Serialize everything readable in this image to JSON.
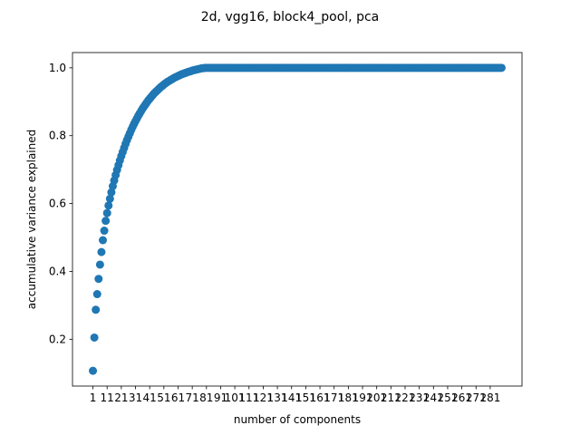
{
  "chart_data": {
    "type": "scatter",
    "title": "2d, vgg16, block4_pool, pca",
    "xlabel": "number of components",
    "ylabel": "accumulative variance explained",
    "color": "#1f77b4",
    "grid": false,
    "xlim": [
      -13.4,
      303.4
    ],
    "ylim": [
      0.062,
      1.045
    ],
    "xticks": [
      1,
      11,
      21,
      31,
      41,
      51,
      61,
      71,
      81,
      91,
      101,
      111,
      121,
      131,
      141,
      151,
      161,
      171,
      181,
      191,
      201,
      211,
      221,
      231,
      241,
      251,
      261,
      271,
      281
    ],
    "yticks": [
      0.2,
      0.4,
      0.6,
      0.8,
      {
        "value": 1,
        "label": "1.0"
      }
    ],
    "x": [
      1,
      2,
      3,
      4,
      5,
      6,
      7,
      8,
      9,
      10,
      11,
      12,
      13,
      14,
      15,
      16,
      17,
      18,
      19,
      20,
      21,
      22,
      23,
      24,
      25,
      26,
      27,
      28,
      29,
      30,
      31,
      32,
      33,
      34,
      35,
      36,
      37,
      38,
      39,
      40,
      41,
      42,
      43,
      44,
      45,
      46,
      47,
      48,
      49,
      50,
      51,
      52,
      53,
      54,
      55,
      56,
      57,
      58,
      59,
      60,
      61,
      62,
      63,
      64,
      65,
      66,
      67,
      68,
      69,
      70,
      71,
      72,
      73,
      74,
      75,
      76,
      77,
      78,
      79,
      80,
      81,
      82,
      83,
      84,
      85,
      86,
      87,
      88,
      89,
      90,
      91,
      92,
      93,
      94,
      95,
      96,
      97,
      98,
      99,
      100,
      101,
      102,
      103,
      104,
      105,
      106,
      107,
      108,
      109,
      110,
      111,
      112,
      113,
      114,
      115,
      116,
      117,
      118,
      119,
      120,
      121,
      122,
      123,
      124,
      125,
      126,
      127,
      128,
      129,
      130,
      131,
      132,
      133,
      134,
      135,
      136,
      137,
      138,
      139,
      140,
      141,
      142,
      143,
      144,
      145,
      146,
      147,
      148,
      149,
      150,
      151,
      152,
      153,
      154,
      155,
      156,
      157,
      158,
      159,
      160,
      161,
      162,
      163,
      164,
      165,
      166,
      167,
      168,
      169,
      170,
      171,
      172,
      173,
      174,
      175,
      176,
      177,
      178,
      179,
      180,
      181,
      182,
      183,
      184,
      185,
      186,
      187,
      188,
      189,
      190,
      191,
      192,
      193,
      194,
      195,
      196,
      197,
      198,
      199,
      200,
      201,
      202,
      203,
      204,
      205,
      206,
      207,
      208,
      209,
      210,
      211,
      212,
      213,
      214,
      215,
      216,
      217,
      218,
      219,
      220,
      221,
      222,
      223,
      224,
      225,
      226,
      227,
      228,
      229,
      230,
      231,
      232,
      233,
      234,
      235,
      236,
      237,
      238,
      239,
      240,
      241,
      242,
      243,
      244,
      245,
      246,
      247,
      248,
      249,
      250,
      251,
      252,
      253,
      254,
      255,
      256,
      257,
      258,
      259,
      260,
      261,
      262,
      263,
      264,
      265,
      266,
      267,
      268,
      269,
      270,
      271,
      272,
      273,
      274,
      275,
      276,
      277,
      278,
      279,
      280,
      281,
      282,
      283,
      284,
      285,
      286,
      287,
      288,
      289
    ],
    "values": [
      0.107,
      0.205,
      0.287,
      0.333,
      0.378,
      0.42,
      0.457,
      0.492,
      0.52,
      0.549,
      0.572,
      0.594,
      0.614,
      0.633,
      0.651,
      0.668,
      0.684,
      0.699,
      0.713,
      0.727,
      0.74,
      0.752,
      0.764,
      0.776,
      0.787,
      0.797,
      0.807,
      0.817,
      0.826,
      0.835,
      0.843,
      0.851,
      0.859,
      0.866,
      0.873,
      0.88,
      0.886,
      0.892,
      0.898,
      0.904,
      0.909,
      0.914,
      0.919,
      0.924,
      0.928,
      0.932,
      0.936,
      0.94,
      0.944,
      0.947,
      0.951,
      0.954,
      0.957,
      0.96,
      0.962,
      0.965,
      0.967,
      0.97,
      0.972,
      0.974,
      0.976,
      0.978,
      0.98,
      0.982,
      0.983,
      0.985,
      0.986,
      0.988,
      0.989,
      0.99,
      0.992,
      0.993,
      0.994,
      0.995,
      0.996,
      0.997,
      0.998,
      0.999,
      0.999,
      1,
      1,
      1,
      1,
      1,
      1,
      1,
      1,
      1,
      1,
      1,
      1,
      1,
      1,
      1,
      1,
      1,
      1,
      1,
      1,
      1,
      1,
      1,
      1,
      1,
      1,
      1,
      1,
      1,
      1,
      1,
      1,
      1,
      1,
      1,
      1,
      1,
      1,
      1,
      1,
      1,
      1,
      1,
      1,
      1,
      1,
      1,
      1,
      1,
      1,
      1,
      1,
      1,
      1,
      1,
      1,
      1,
      1,
      1,
      1,
      1,
      1,
      1,
      1,
      1,
      1,
      1,
      1,
      1,
      1,
      1,
      1,
      1,
      1,
      1,
      1,
      1,
      1,
      1,
      1,
      1,
      1,
      1,
      1,
      1,
      1,
      1,
      1,
      1,
      1,
      1,
      1,
      1,
      1,
      1,
      1,
      1,
      1,
      1,
      1,
      1,
      1,
      1,
      1,
      1,
      1,
      1,
      1,
      1,
      1,
      1,
      1,
      1,
      1,
      1,
      1,
      1,
      1,
      1,
      1,
      1,
      1,
      1,
      1,
      1,
      1,
      1,
      1,
      1,
      1,
      1,
      1,
      1,
      1,
      1,
      1,
      1,
      1,
      1,
      1,
      1,
      1,
      1,
      1,
      1,
      1,
      1,
      1,
      1,
      1,
      1,
      1,
      1,
      1,
      1,
      1,
      1,
      1,
      1,
      1,
      1,
      1,
      1,
      1,
      1,
      1,
      1,
      1,
      1,
      1,
      1,
      1,
      1,
      1,
      1,
      1,
      1,
      1,
      1,
      1,
      1,
      1,
      1,
      1,
      1,
      1,
      1,
      1,
      1,
      1,
      1,
      1,
      1,
      1,
      1,
      1,
      1,
      1,
      1,
      1,
      1,
      1,
      1,
      1,
      1,
      1,
      1,
      1,
      1,
      1
    ]
  }
}
